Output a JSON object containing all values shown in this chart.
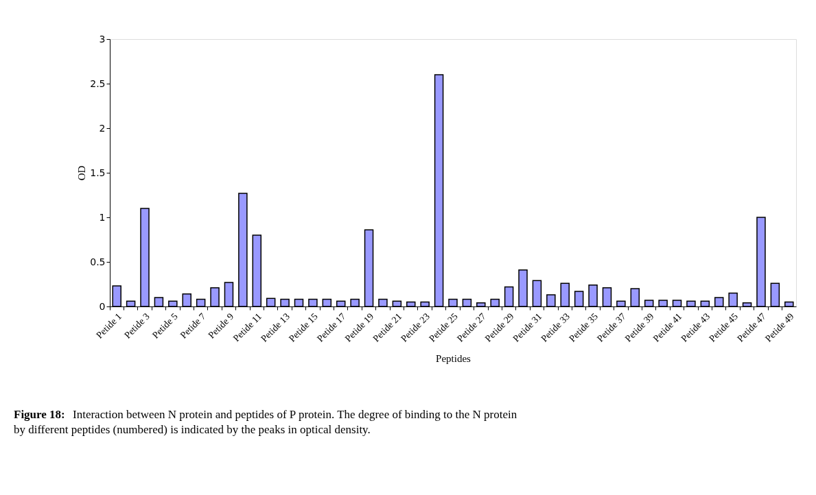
{
  "chart_data": {
    "type": "bar",
    "xlabel": "Peptides",
    "ylabel": "OD",
    "categories": [
      "Petide 1",
      null,
      "Petide 3",
      null,
      "Petide 5",
      null,
      "Petide 7",
      null,
      "Petide 9",
      null,
      "Petide 11",
      null,
      "Petide 13",
      null,
      "Petide 15",
      null,
      "Petide 17",
      null,
      "Petide 19",
      null,
      "Petide 21",
      null,
      "Petide 23",
      null,
      "Petide 25",
      null,
      "Petide 27",
      null,
      "Petide 29",
      null,
      "Petide 31",
      null,
      "Petide 33",
      null,
      "Petide 35",
      null,
      "Petide 37",
      null,
      "Petide 39",
      null,
      "Petide 41",
      null,
      "Petide 43",
      null,
      "Petide 45",
      null,
      "Petide 47",
      null,
      "Petide 49"
    ],
    "values": [
      0.23,
      0.06,
      1.1,
      0.1,
      0.06,
      0.14,
      0.08,
      0.21,
      0.27,
      1.27,
      0.8,
      0.09,
      0.08,
      0.08,
      0.08,
      0.08,
      0.06,
      0.08,
      0.86,
      0.08,
      0.06,
      0.05,
      0.05,
      2.6,
      0.08,
      0.08,
      0.04,
      0.08,
      0.22,
      0.41,
      0.29,
      0.13,
      0.26,
      0.17,
      0.24,
      0.21,
      0.06,
      0.2,
      0.07,
      0.07,
      0.07,
      0.06,
      0.06,
      0.1,
      0.15,
      0.04,
      1.0,
      0.26,
      0.05
    ],
    "color": "#9999ff",
    "ylim": [
      0,
      3
    ],
    "yticks": [
      0,
      0.5,
      1,
      1.5,
      2,
      2.5,
      3
    ],
    "grid": false,
    "annotations": [
      "Figure 18:",
      "Interaction between N protein and peptides of P protein. The degree of binding to the N protein by different peptides (numbered) is indicated by the peaks in optical density."
    ]
  }
}
